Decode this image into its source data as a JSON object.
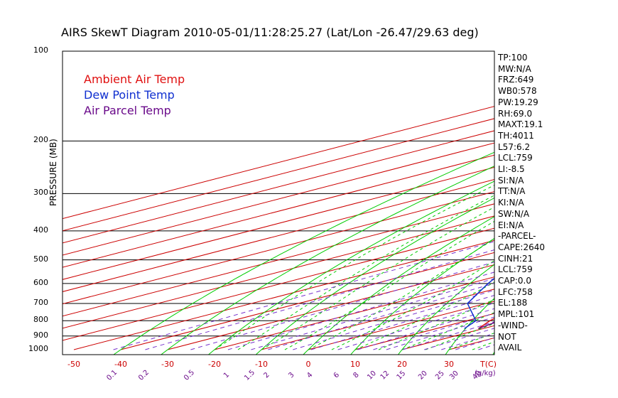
{
  "title": "AIRS SkewT Diagram 2010-05-01/11:28:25.27 (Lat/Lon -26.47/29.63 deg)",
  "ylabel": "PRESSURE (MB)",
  "legend": [
    {
      "label": "Ambient Air Temp",
      "color": "#e01010"
    },
    {
      "label": "Dew Point Temp",
      "color": "#1030d0"
    },
    {
      "label": "Air Parcel Temp",
      "color": "#6a0a8a"
    }
  ],
  "colors": {
    "dry_adiabat": "#00cc00",
    "isotherm": "#cc0000",
    "moist_adiabat": "#00cc00",
    "mixing_ratio": "#7733cc",
    "hatch": "#660066"
  },
  "indices": [
    "TP:100",
    "MW:N/A",
    "FRZ:649",
    "WB0:578",
    "PW:19.29",
    "RH:69.0",
    "MAXT:19.1",
    "TH:4011",
    "L57:6.2",
    "LCL:759",
    "LI:-8.5",
    "SI:N/A",
    "TT:N/A",
    "KI:N/A",
    "SW:N/A",
    "EI:N/A",
    "-PARCEL-",
    "CAPE:2640",
    "CINH:21",
    "LCL:759",
    "CAP:0.0",
    "LFC:758",
    "EL:188",
    "MPL:101",
    "-WIND-",
    "NOT",
    "AVAIL"
  ],
  "chart_data": {
    "type": "line",
    "title": "AIRS SkewT Diagram 2010-05-01/11:28:25.27 (Lat/Lon -26.47/29.63 deg)",
    "ylabel": "PRESSURE (MB)",
    "y_scale": "log",
    "pressure_levels": [
      100,
      200,
      300,
      400,
      500,
      600,
      700,
      800,
      900,
      1000
    ],
    "pressure_tick_labels": [
      "100",
      "200",
      "300",
      "400",
      "500",
      "600",
      "700",
      "800",
      "900",
      "1000"
    ],
    "top_temp_ticks": [
      -120,
      -110,
      -100,
      -90,
      -80,
      -70,
      -60,
      -50,
      -40
    ],
    "bottom_temp_ticks": [
      -50,
      -40,
      -30,
      -20,
      -10,
      0,
      10,
      20,
      30
    ],
    "bottom_temp_unit": "T(C)",
    "mixing_ratio_labels": [
      "0.1",
      "0.2",
      "0.5",
      "1",
      "1.5",
      "2",
      "3",
      "4",
      "6",
      "8",
      "10",
      "12",
      "15",
      "20",
      "25",
      "30",
      "40"
    ],
    "mixing_ratio_unit": "(g/kg)",
    "series": [
      {
        "name": "Ambient Air Temp",
        "color": "#e01010",
        "points": [
          [
            100,
            -74
          ],
          [
            120,
            -70
          ],
          [
            140,
            -68
          ],
          [
            160,
            -68
          ],
          [
            180,
            -69
          ],
          [
            200,
            -67
          ],
          [
            250,
            -52
          ],
          [
            300,
            -40
          ],
          [
            400,
            -23
          ],
          [
            500,
            -9.5
          ],
          [
            600,
            1
          ],
          [
            700,
            8
          ],
          [
            800,
            15
          ],
          [
            850,
            19
          ]
        ]
      },
      {
        "name": "Dew Point Temp",
        "color": "#1030d0",
        "points": [
          [
            100,
            -97
          ],
          [
            130,
            -105
          ],
          [
            160,
            -113
          ],
          [
            200,
            -110
          ],
          [
            250,
            -88
          ],
          [
            300,
            -71
          ],
          [
            400,
            -47
          ],
          [
            500,
            -29
          ],
          [
            600,
            -16
          ],
          [
            700,
            -4
          ],
          [
            800,
            12
          ],
          [
            850,
            16
          ]
        ]
      },
      {
        "name": "Air Parcel Temp",
        "color": "#6a0a8a",
        "points": [
          [
            100,
            -101
          ],
          [
            150,
            -82
          ],
          [
            200,
            -63
          ],
          [
            250,
            -43
          ],
          [
            300,
            -30
          ],
          [
            400,
            -11
          ],
          [
            500,
            0.5
          ],
          [
            600,
            8
          ],
          [
            700,
            13
          ],
          [
            759,
            15.5
          ],
          [
            800,
            17
          ],
          [
            850,
            19
          ]
        ]
      }
    ],
    "cape_hatch_range_hpa": [
      758,
      188
    ]
  }
}
